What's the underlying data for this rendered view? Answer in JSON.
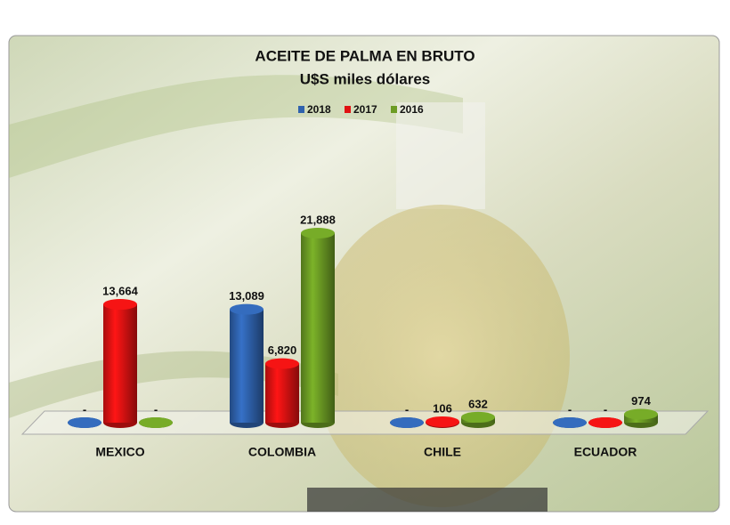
{
  "chart_data": {
    "type": "bar3d",
    "title": "ACEITE DE PALMA EN BRUTO",
    "subtitle": "U$S miles dólares",
    "categories": [
      "MEXICO",
      "COLOMBIA",
      "CHILE",
      "ECUADOR"
    ],
    "series": [
      {
        "name": "2018",
        "color": "#2f62ad",
        "values": [
          0,
          13089,
          0,
          0
        ],
        "value_labels": [
          "-",
          "13,089",
          "-",
          "-"
        ]
      },
      {
        "name": "2017",
        "color": "#e01212",
        "values": [
          13664,
          6820,
          106,
          0
        ],
        "value_labels": [
          "13,664",
          "6,820",
          "106",
          "-"
        ]
      },
      {
        "name": "2016",
        "color": "#6c9c24",
        "values": [
          0,
          21888,
          632,
          974
        ],
        "value_labels": [
          "-",
          "21,888",
          "632",
          "974"
        ]
      }
    ],
    "legend": "top"
  }
}
